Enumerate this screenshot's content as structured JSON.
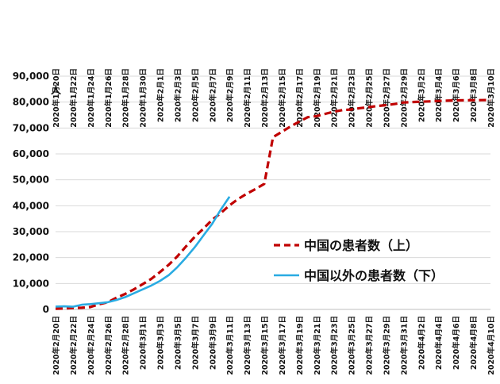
{
  "chart_data": {
    "type": "line",
    "title": "",
    "ylabel": "人",
    "xlabel": "",
    "ylim": [
      0,
      90000
    ],
    "y_ticks": [
      0,
      10000,
      20000,
      30000,
      40000,
      50000,
      60000,
      70000,
      80000,
      90000
    ],
    "y_tick_labels": [
      "0",
      "10,000",
      "20,000",
      "30,000",
      "40,000",
      "50,000",
      "60,000",
      "70,000",
      "80,000",
      "90,000"
    ],
    "grid": "horizontal",
    "legend_position": "right-middle",
    "bottom_axis_labels": [
      "2020年2月20日",
      "2020年2月22日",
      "2020年2月24日",
      "2020年2月26日",
      "2020年2月28日",
      "2020年3月1日",
      "2020年3月3日",
      "2020年3月5日",
      "2020年3月7日",
      "2020年3月9日",
      "2020年3月11日",
      "2020年3月13日",
      "2020年3月15日",
      "2020年3月17日",
      "2020年3月19日",
      "2020年3月21日",
      "2020年3月23日",
      "2020年3月25日",
      "2020年3月27日",
      "2020年3月29日",
      "2020年3月31日",
      "2020年4月2日",
      "2020年4月4日",
      "2020年4月6日",
      "2020年4月8日",
      "2020年4月10日"
    ],
    "top_axis_labels": [
      "2020年1月20日",
      "2020年1月22日",
      "2020年1月24日",
      "2020年1月26日",
      "2020年1月28日",
      "2020年1月30日",
      "2020年2月1日",
      "2020年2月3日",
      "2020年2月5日",
      "2020年2月7日",
      "2020年2月9日",
      "2020年2月11日",
      "2020年2月13日",
      "2020年2月15日",
      "2020年2月17日",
      "2020年2月19日",
      "2020年2月21日",
      "2020年2月23日",
      "2020年2月25日",
      "2020年2月27日",
      "2020年2月29日",
      "2020年3月2日",
      "2020年3月4日",
      "2020年3月6日",
      "2020年3月8日",
      "2020年3月10日"
    ],
    "series": [
      {
        "name": "中国の患者数（上）",
        "color": "#c00000",
        "style": "dashed",
        "axis": "top",
        "x_index": [
          0,
          1,
          2,
          3,
          4,
          5,
          6,
          7,
          8,
          9,
          10,
          11,
          12,
          13,
          14,
          15,
          16,
          17,
          18,
          19,
          20,
          21,
          22,
          23,
          24,
          25,
          26,
          27,
          28,
          29,
          30,
          31,
          32,
          33,
          34,
          35,
          36,
          37,
          38,
          39,
          40,
          41,
          42,
          43,
          44,
          45,
          46,
          47,
          48,
          49,
          50
        ],
        "values": [
          278,
          326,
          547,
          639,
          916,
          2000,
          2744,
          4515,
          5974,
          7711,
          9692,
          11791,
          14380,
          17205,
          20438,
          24324,
          28018,
          31161,
          34546,
          37198,
          40171,
          42638,
          44653,
          46472,
          48467,
          66492,
          68500,
          70548,
          72436,
          74185,
          74576,
          75465,
          76288,
          76936,
          77150,
          77658,
          78064,
          78497,
          78824,
          79251,
          79824,
          80026,
          80151,
          80270,
          80409,
          80552,
          80651,
          80695,
          80735,
          80754,
          80778
        ]
      },
      {
        "name": "中国以外の患者数（下）",
        "color": "#29abe2",
        "style": "solid",
        "axis": "bottom",
        "x_index": [
          0,
          1,
          2,
          3,
          4,
          5,
          6,
          7,
          8,
          9,
          10,
          11,
          12,
          13,
          14,
          15,
          16,
          17,
          18,
          19,
          20
        ],
        "values": [
          1100,
          1200,
          1050,
          1800,
          2050,
          2400,
          2800,
          3650,
          4750,
          6200,
          7700,
          9200,
          11000,
          13200,
          16300,
          20000,
          24000,
          28500,
          33000,
          38500,
          43500
        ]
      }
    ]
  }
}
